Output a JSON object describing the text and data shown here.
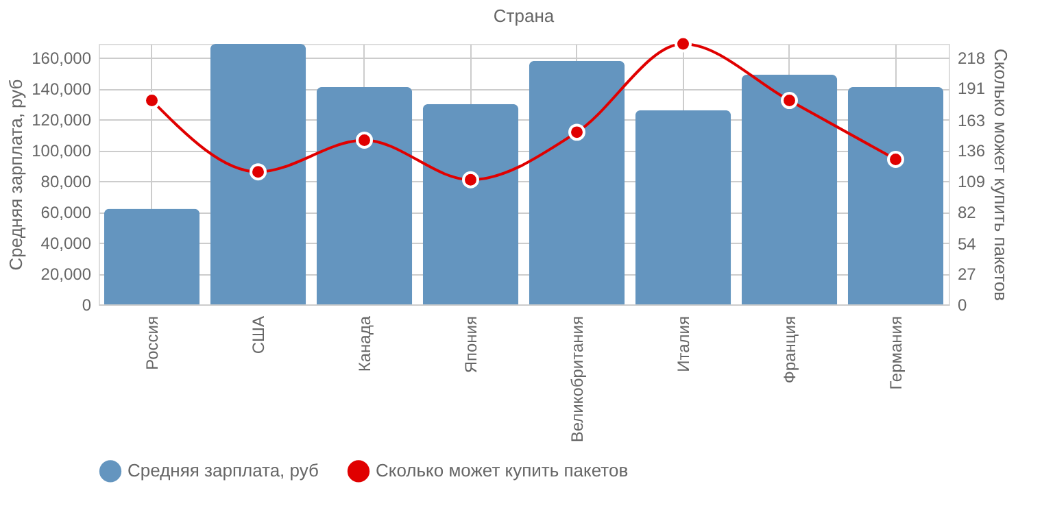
{
  "chart_data": {
    "type": "bar",
    "xlabel": "Страна",
    "ylabel": "Средняя зарплата, руб",
    "y2label": "Сколько может купить пакетов",
    "categories": [
      "Россия",
      "США",
      "Канада",
      "Япония",
      "Великобритания",
      "Италия",
      "Франция",
      "Германия"
    ],
    "series": [
      {
        "name": "Средняя зарплата, руб",
        "color": "#6495bf",
        "values": [
          62000,
          169000,
          141000,
          130000,
          158000,
          126000,
          149000,
          141000
        ]
      },
      {
        "name": "Сколько может купить пакетов",
        "type": "line",
        "axis": "y2",
        "color": "#e00000",
        "marker": "circle",
        "line_style": "solid",
        "values": [
          180,
          117,
          145,
          110,
          152,
          230,
          180,
          128
        ]
      }
    ],
    "ylim": [
      0,
      169000
    ],
    "yticks": [
      0,
      {
        "value": 20000,
        "label": "20,000"
      },
      {
        "value": 40000,
        "label": "40,000"
      },
      {
        "value": 60000,
        "label": "60,000"
      },
      {
        "value": 80000,
        "label": "80,000"
      },
      {
        "value": 100000,
        "label": "100,000"
      },
      {
        "value": 120000,
        "label": "120,000"
      },
      {
        "value": 140000,
        "label": "140,000"
      },
      {
        "value": 160000,
        "label": "160,000"
      }
    ],
    "y2lim": [
      0,
      230
    ],
    "y2ticks": [
      0,
      27,
      54,
      82,
      109,
      136,
      163,
      191,
      218
    ],
    "grid": true,
    "legend": "bottom left"
  }
}
